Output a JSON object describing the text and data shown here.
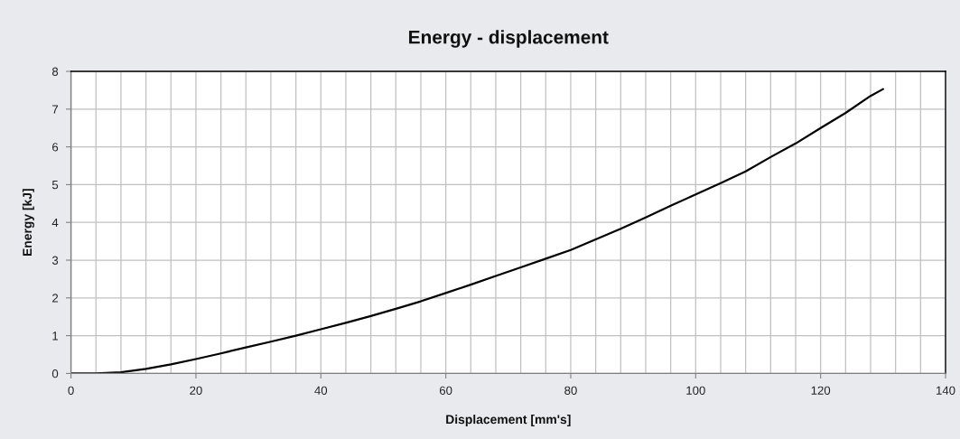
{
  "chart_data": {
    "type": "line",
    "title": "Energy - displacement",
    "xlabel": "Displacement [mm's]",
    "ylabel": "Energy [kJ]",
    "series": [
      {
        "color": "#000000",
        "x": [
          0,
          4,
          8,
          12,
          16,
          20,
          24,
          28,
          32,
          36,
          40,
          44,
          48,
          52,
          56,
          60,
          64,
          68,
          72,
          76,
          80,
          84,
          88,
          92,
          96,
          100,
          104,
          108,
          112,
          116,
          120,
          124,
          128,
          130
        ],
        "values": [
          0,
          0,
          0.03,
          0.12,
          0.24,
          0.38,
          0.53,
          0.69,
          0.84,
          1.0,
          1.17,
          1.34,
          1.52,
          1.71,
          1.91,
          2.13,
          2.35,
          2.58,
          2.81,
          3.04,
          3.27,
          3.55,
          3.83,
          4.13,
          4.44,
          4.74,
          5.04,
          5.35,
          5.73,
          6.09,
          6.5,
          6.9,
          7.35,
          7.53
        ]
      }
    ],
    "xlim": [
      0,
      140
    ],
    "xticks": [
      0,
      {
        "value": 4,
        "label": null
      },
      {
        "value": 8,
        "label": null
      },
      {
        "value": 12,
        "label": null
      },
      {
        "value": 16,
        "label": null
      },
      20,
      {
        "value": 24,
        "label": null
      },
      {
        "value": 28,
        "label": null
      },
      {
        "value": 32,
        "label": null
      },
      {
        "value": 36,
        "label": null
      },
      40,
      {
        "value": 44,
        "label": null
      },
      {
        "value": 48,
        "label": null
      },
      {
        "value": 52,
        "label": null
      },
      {
        "value": 56,
        "label": null
      },
      60,
      {
        "value": 64,
        "label": null
      },
      {
        "value": 68,
        "label": null
      },
      {
        "value": 72,
        "label": null
      },
      {
        "value": 76,
        "label": null
      },
      80,
      {
        "value": 84,
        "label": null
      },
      {
        "value": 88,
        "label": null
      },
      {
        "value": 92,
        "label": null
      },
      {
        "value": 96,
        "label": null
      },
      100,
      {
        "value": 104,
        "label": null
      },
      {
        "value": 108,
        "label": null
      },
      {
        "value": 112,
        "label": null
      },
      {
        "value": 116,
        "label": null
      },
      120,
      {
        "value": 124,
        "label": null
      },
      {
        "value": 128,
        "label": null
      },
      {
        "value": 132,
        "label": null
      },
      {
        "value": 136,
        "label": null
      },
      140
    ],
    "ylim": [
      0,
      8
    ],
    "yticks": [
      0,
      1,
      2,
      3,
      4,
      5,
      6,
      7,
      8
    ],
    "grid": true,
    "line_style": "solid"
  }
}
